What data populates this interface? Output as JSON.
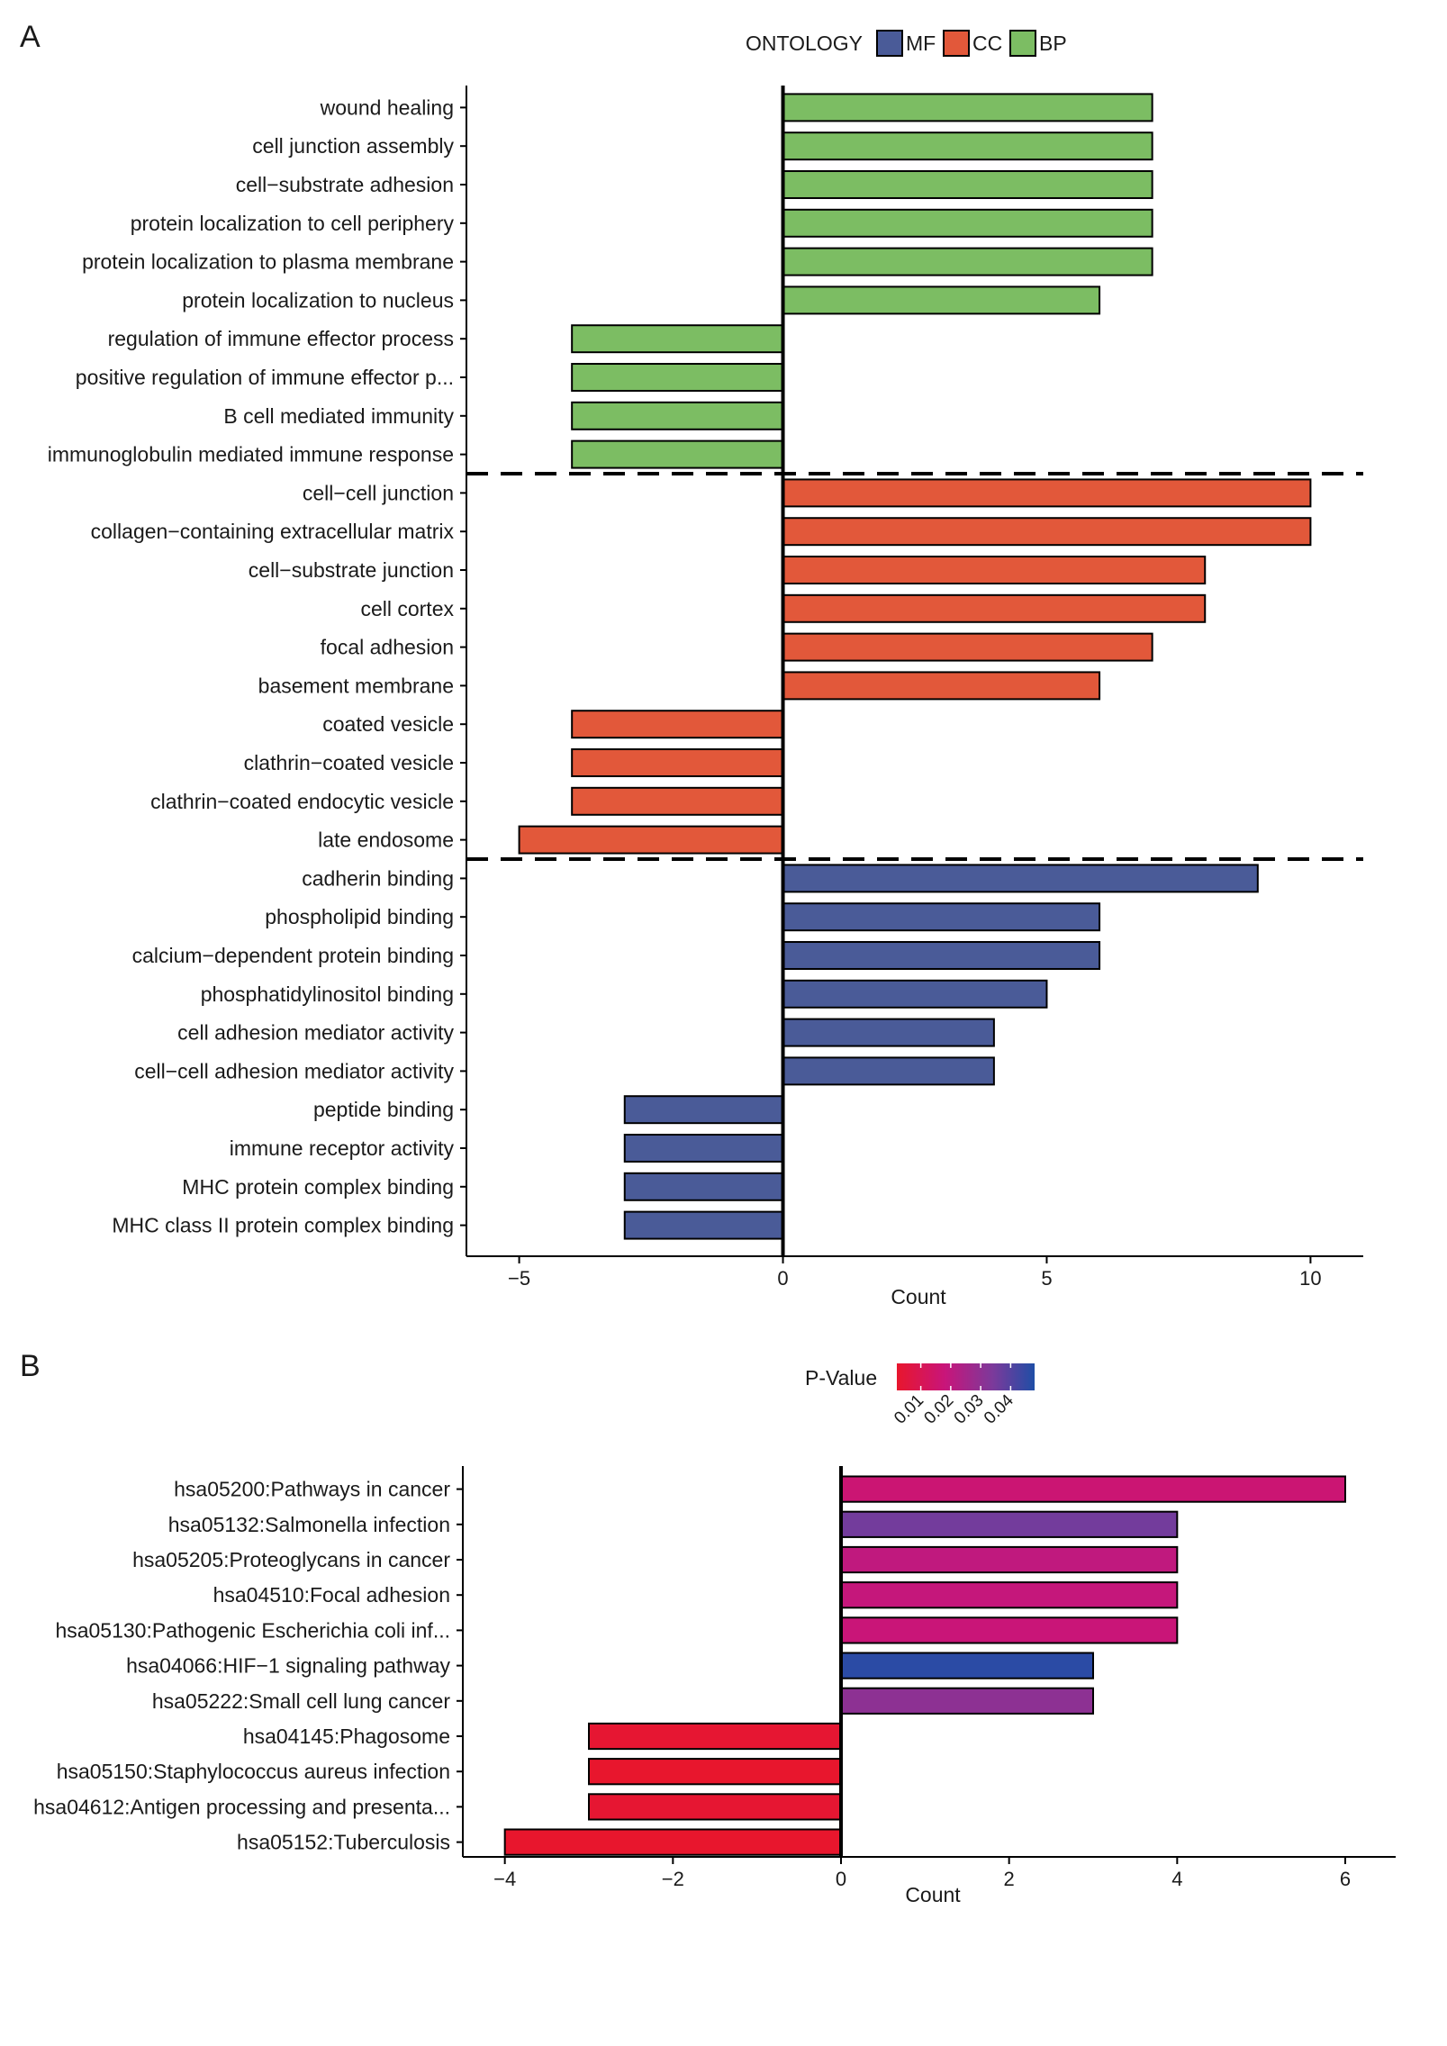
{
  "chart_data": [
    {
      "panel": "A",
      "type": "bar",
      "orientation": "horizontal",
      "xlabel": "Count",
      "ylabel": "",
      "xlim": [
        -6,
        11
      ],
      "xticks": [
        -5,
        0,
        5,
        10
      ],
      "xtick_labels": [
        "−5",
        "0",
        "5",
        "10"
      ],
      "legend": {
        "title": "ONTOLOGY",
        "position": "top",
        "entries": [
          {
            "key": "MF",
            "label": "MF",
            "color": "#4a5b98"
          },
          {
            "key": "CC",
            "label": "CC",
            "color": "#e2583a"
          },
          {
            "key": "BP",
            "label": "BP",
            "color": "#7cbd63"
          }
        ]
      },
      "categories": [
        "wound healing",
        "cell junction assembly",
        "cell−substrate adhesion",
        "protein localization to cell periphery",
        "protein localization to plasma membrane",
        "protein localization to nucleus",
        "regulation of immune effector process",
        "positive regulation of immune effector p...",
        "B cell mediated immunity",
        "immunoglobulin mediated immune response",
        "cell−cell junction",
        "collagen−containing extracellular matrix",
        "cell−substrate junction",
        "cell cortex",
        "focal adhesion",
        "basement membrane",
        "coated vesicle",
        "clathrin−coated vesicle",
        "clathrin−coated endocytic vesicle",
        "late endosome",
        "cadherin binding",
        "phospholipid binding",
        "calcium−dependent protein binding",
        "phosphatidylinositol binding",
        "cell adhesion mediator activity",
        "cell−cell adhesion mediator activity",
        "peptide binding",
        "immune receptor activity",
        "MHC protein complex binding",
        "MHC class II protein complex binding"
      ],
      "values": [
        7,
        7,
        7,
        7,
        7,
        6,
        -4,
        -4,
        -4,
        -4,
        10,
        10,
        8,
        8,
        7,
        6,
        -4,
        -4,
        -4,
        -5,
        9,
        6,
        6,
        5,
        4,
        4,
        -3,
        -3,
        -3,
        -3
      ],
      "groups": [
        "BP",
        "BP",
        "BP",
        "BP",
        "BP",
        "BP",
        "BP",
        "BP",
        "BP",
        "BP",
        "CC",
        "CC",
        "CC",
        "CC",
        "CC",
        "CC",
        "CC",
        "CC",
        "CC",
        "CC",
        "MF",
        "MF",
        "MF",
        "MF",
        "MF",
        "MF",
        "MF",
        "MF",
        "MF",
        "MF"
      ],
      "group_separators_after": [
        9,
        19
      ]
    },
    {
      "panel": "B",
      "type": "bar",
      "orientation": "horizontal",
      "xlabel": "Count",
      "ylabel": "",
      "xlim": [
        -4.5,
        6.6
      ],
      "xticks": [
        -4,
        -2,
        0,
        2,
        4,
        6
      ],
      "xtick_labels": [
        "−4",
        "−2",
        "0",
        "2",
        "4",
        "6"
      ],
      "color_scale": {
        "title": "P-Value",
        "min": 0.002,
        "max": 0.048,
        "ticks": [
          0.01,
          0.02,
          0.03,
          0.04
        ],
        "tick_labels": [
          "0.01",
          "0.02",
          "0.03",
          "0.04"
        ],
        "colors": [
          "#e8162d",
          "#c8157a",
          "#7b3a9b",
          "#1f4ea6"
        ]
      },
      "categories": [
        "hsa05200:Pathways in cancer",
        "hsa05132:Salmonella infection",
        "hsa05205:Proteoglycans in cancer",
        "hsa04510:Focal adhesion",
        "hsa05130:Pathogenic Escherichia coli inf...",
        "hsa04066:HIF−1 signaling pathway",
        "hsa05222:Small cell lung cancer",
        "hsa04145:Phagosome",
        "hsa05150:Staphylococcus aureus infection",
        "hsa04612:Antigen processing and presenta...",
        "hsa05152:Tuberculosis"
      ],
      "values": [
        6,
        4,
        4,
        4,
        4,
        3,
        3,
        -3,
        -3,
        -3,
        -4
      ],
      "pvalues": [
        0.016,
        0.034,
        0.019,
        0.018,
        0.017,
        0.046,
        0.029,
        0.003,
        0.002,
        0.003,
        0.002
      ]
    }
  ],
  "panel_labels": {
    "a": "A",
    "b": "B"
  }
}
